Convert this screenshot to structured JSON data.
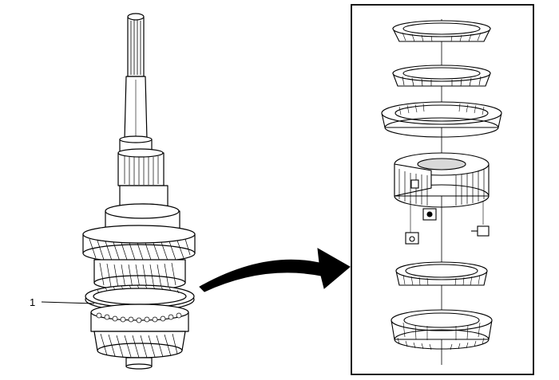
{
  "callouts": [
    {
      "id": "1",
      "label": "1"
    }
  ],
  "colors": {
    "line": "#000000",
    "background": "#ffffff",
    "part_fill": "#ffffff",
    "shade": "#d9d9d9"
  },
  "icons": {
    "arrow": "curved-arrow-icon"
  }
}
